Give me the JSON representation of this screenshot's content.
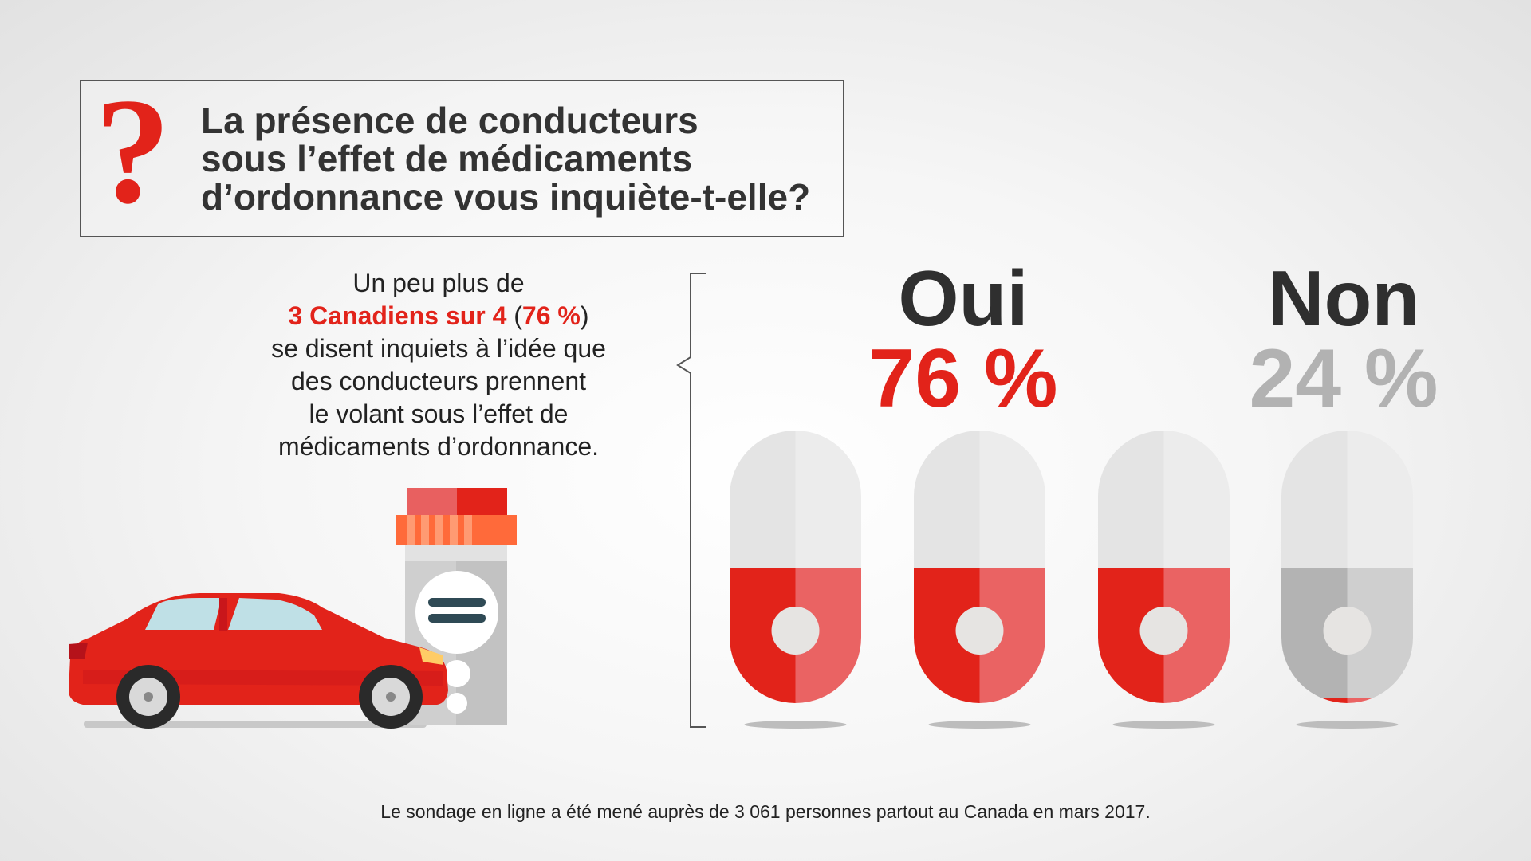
{
  "question": {
    "mark": "?",
    "lines": [
      "La présence de conducteurs",
      "sous l’effet de médicaments",
      "d’ordonnance vous inquiète-t-elle?"
    ]
  },
  "statement": {
    "line1": "Un peu plus de",
    "highlight": "3 Canadiens sur 4",
    "paren_open": " (",
    "pct": "76 %",
    "paren_close": ")",
    "line3": "se disent inquiets à l’idée que",
    "line4": "des conducteurs prennent",
    "line5": "le volant sous l’effet de",
    "line6": "médicaments d’ordonnance."
  },
  "results": {
    "yes": {
      "label": "Oui",
      "value_text": "76 %"
    },
    "no": {
      "label": "Non",
      "value_text": "24 %"
    }
  },
  "pills": [
    {
      "fill": 1.0
    },
    {
      "fill": 1.0
    },
    {
      "fill": 1.0
    },
    {
      "fill": 0.04
    }
  ],
  "footnote": "Le sondage en ligne a été mené auprès de 3 061 personnes partout au Canada en mars 2017.",
  "colors": {
    "red": "#e2231a",
    "red_light": "#ea6363",
    "grey_dark": "#b3b3b3",
    "grey_light": "#cfcfcf",
    "pill_top_left": "#e4e4e4",
    "pill_top_right": "#ececec",
    "text_dark": "#333333"
  },
  "icons": [
    "question-mark-icon",
    "car-icon",
    "pill-bottle-icon",
    "pill-icon"
  ]
}
